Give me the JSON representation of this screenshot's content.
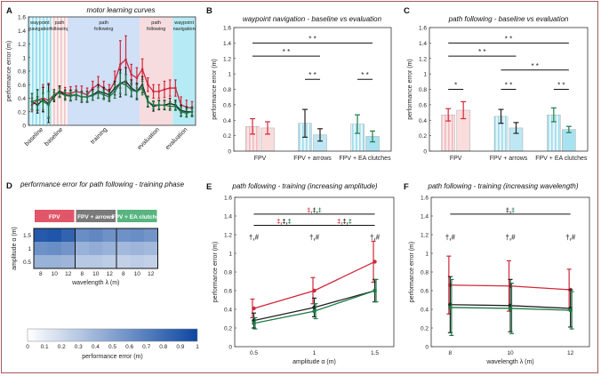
{
  "colors": {
    "fpv": "#d0283a",
    "arrows": "#222222",
    "ea": "#1e7a45",
    "fpv_fill": "#f9dcdc",
    "arrows_fill": "#bfe7f3",
    "ea_fill": "#a8e2f0",
    "fpv_label_bg": "#e2566a",
    "arrows_label_bg": "#7a7a7a",
    "ea_label_bg": "#58b580",
    "phase_nav": "#b6ebf5",
    "phase_follow": "#f6dcde",
    "phase_training": "#cfe0f7",
    "frame": "#a05a5a"
  },
  "panels": {
    "A": {
      "letter": "A",
      "title": "motor learning curves"
    },
    "B": {
      "letter": "B",
      "title": "waypoint navigation - baseline vs evaluation"
    },
    "C": {
      "letter": "C",
      "title": "path following - baseline vs evaluation"
    },
    "D": {
      "letter": "D",
      "title": "performance error for path following - training phase"
    },
    "E": {
      "letter": "E",
      "title": "path following - training (increasing amplitude)"
    },
    "F": {
      "letter": "F",
      "title": "path following - training (increasing wavelength)"
    }
  },
  "chart_data": [
    {
      "id": "A",
      "type": "line",
      "title": "motor learning curves",
      "ylabel": "performance error (m)",
      "ylim": [
        0,
        1.6
      ],
      "yticks": [
        "0",
        "0.2",
        "0.4",
        "0.6",
        "0.8",
        "1",
        "1.2",
        "1.4",
        "1.6"
      ],
      "phases": [
        {
          "lines": [
            "waypoint",
            "navigation"
          ],
          "xlabel": "baseline",
          "kind": "nav"
        },
        {
          "lines": [
            "path",
            "following"
          ],
          "xlabel": "baseline",
          "kind": "follow"
        },
        {
          "lines": [
            "path",
            "following"
          ],
          "xlabel": "training",
          "kind": "training"
        },
        {
          "lines": [
            "path",
            "following"
          ],
          "xlabel": "evaluation",
          "kind": "follow"
        },
        {
          "lines": [
            "waypoint",
            "navigation"
          ],
          "xlabel": "evaluation",
          "kind": "nav"
        }
      ],
      "series": [
        {
          "name": "FPV",
          "color_key": "fpv",
          "values": [
            0.3,
            0.37,
            0.4,
            0.37,
            0.45,
            0.5,
            0.48,
            0.47,
            0.5,
            0.48,
            0.45,
            0.55,
            0.6,
            0.55,
            0.5,
            0.65,
            0.9,
            0.97,
            0.75,
            0.7,
            0.83,
            0.6,
            0.5,
            0.5,
            0.53,
            0.55,
            0.55,
            0.3,
            0.27,
            0.25
          ],
          "errors": [
            0.1,
            0.15,
            0.2,
            0.25,
            0.08,
            0.08,
            0.08,
            0.1,
            0.08,
            0.1,
            0.1,
            0.1,
            0.12,
            0.1,
            0.1,
            0.15,
            0.35,
            0.35,
            0.15,
            0.15,
            0.15,
            0.1,
            0.1,
            0.1,
            0.12,
            0.12,
            0.12,
            0.12,
            0.1,
            0.1
          ]
        },
        {
          "name": "FPV + arrows",
          "color_key": "arrows",
          "values": [
            0.35,
            0.3,
            0.38,
            0.32,
            0.42,
            0.5,
            0.45,
            0.44,
            0.45,
            0.42,
            0.42,
            0.45,
            0.5,
            0.48,
            0.45,
            0.55,
            0.62,
            0.65,
            0.55,
            0.5,
            0.6,
            0.35,
            0.28,
            0.3,
            0.3,
            0.32,
            0.3,
            0.22,
            0.2,
            0.2
          ],
          "errors": [
            0.12,
            0.12,
            0.18,
            0.28,
            0.07,
            0.08,
            0.07,
            0.08,
            0.07,
            0.08,
            0.08,
            0.08,
            0.1,
            0.08,
            0.08,
            0.1,
            0.2,
            0.2,
            0.12,
            0.12,
            0.12,
            0.08,
            0.07,
            0.07,
            0.07,
            0.08,
            0.07,
            0.08,
            0.07,
            0.07
          ]
        },
        {
          "name": "FPV + EA clutches",
          "color_key": "ea",
          "values": [
            0.35,
            0.38,
            0.35,
            0.3,
            0.45,
            0.48,
            0.44,
            0.43,
            0.45,
            0.42,
            0.42,
            0.44,
            0.48,
            0.45,
            0.42,
            0.5,
            0.62,
            0.6,
            0.52,
            0.5,
            0.55,
            0.35,
            0.3,
            0.3,
            0.3,
            0.28,
            0.28,
            0.2,
            0.18,
            0.2
          ],
          "errors": [
            0.12,
            0.15,
            0.12,
            0.2,
            0.07,
            0.07,
            0.07,
            0.07,
            0.07,
            0.07,
            0.07,
            0.07,
            0.08,
            0.07,
            0.07,
            0.1,
            0.15,
            0.15,
            0.1,
            0.1,
            0.1,
            0.07,
            0.06,
            0.06,
            0.06,
            0.06,
            0.06,
            0.07,
            0.06,
            0.06
          ]
        }
      ],
      "phase_bounds": [
        0,
        4,
        7,
        20,
        26,
        30
      ]
    },
    {
      "id": "B",
      "type": "bar",
      "title": "waypoint navigation - baseline vs evaluation",
      "ylabel": "performance error (m)",
      "ylim": [
        0,
        1.6
      ],
      "yticks": [
        "0",
        "0.2",
        "0.4",
        "0.6",
        "0.8",
        "1",
        "1.2",
        "1.4",
        "1.6"
      ],
      "categories": [
        "FPV",
        "FPV + arrows",
        "FPV + EA clutches"
      ],
      "groups": [
        {
          "baseline": 0.32,
          "b_err": 0.1,
          "evaluation": 0.3,
          "e_err": 0.08,
          "color_key": "fpv"
        },
        {
          "baseline": 0.36,
          "b_err": 0.18,
          "evaluation": 0.21,
          "e_err": 0.08,
          "color_key": "arrows"
        },
        {
          "baseline": 0.35,
          "b_err": 0.12,
          "evaluation": 0.19,
          "e_err": 0.07,
          "color_key": "ea"
        }
      ],
      "significance": [
        {
          "from": 0,
          "to": 2,
          "level": 1.4,
          "label": "* *"
        },
        {
          "from": 0,
          "to": 1,
          "level": 1.23,
          "label": "* *"
        },
        {
          "from": 1.0,
          "to": 1.35,
          "level": 0.93,
          "label": "* *",
          "within": 1
        },
        {
          "from": 2.0,
          "to": 2.35,
          "level": 0.93,
          "label": "* *",
          "within": 2
        }
      ]
    },
    {
      "id": "C",
      "type": "bar",
      "title": "path following - baseline vs evaluation",
      "ylabel": "performance error (m)",
      "ylim": [
        0,
        1.6
      ],
      "yticks": [
        "0",
        "0.2",
        "0.4",
        "0.6",
        "0.8",
        "1",
        "1.2",
        "1.4",
        "1.6"
      ],
      "categories": [
        "FPV",
        "FPV + arrows",
        "FPV + EA clutches"
      ],
      "groups": [
        {
          "baseline": 0.47,
          "b_err": 0.08,
          "evaluation": 0.53,
          "e_err": 0.11,
          "color_key": "fpv"
        },
        {
          "baseline": 0.45,
          "b_err": 0.09,
          "evaluation": 0.3,
          "e_err": 0.07,
          "color_key": "arrows"
        },
        {
          "baseline": 0.47,
          "b_err": 0.09,
          "evaluation": 0.28,
          "e_err": 0.04,
          "color_key": "ea"
        }
      ],
      "significance": [
        {
          "from": 0,
          "to": 2,
          "level": 1.4,
          "label": "* *"
        },
        {
          "from": 0,
          "to": 1,
          "level": 1.23,
          "label": "* *"
        },
        {
          "from": 1,
          "to": 2,
          "level": 1.05,
          "label": "* *"
        },
        {
          "from": 0.0,
          "to": 0.35,
          "level": 0.8,
          "label": "*",
          "within": 0
        },
        {
          "from": 1.0,
          "to": 1.35,
          "level": 0.8,
          "label": "* *",
          "within": 1
        },
        {
          "from": 2.0,
          "to": 2.35,
          "level": 0.8,
          "label": "* *",
          "within": 2
        }
      ]
    },
    {
      "id": "D",
      "type": "heatmap",
      "title": "performance error for path following - training phase",
      "groups": [
        "FPV",
        "FPV + arrows",
        "FPV + EA clutches"
      ],
      "group_color_keys": [
        "fpv_label_bg",
        "arrows_label_bg",
        "ea_label_bg"
      ],
      "xlabel": "wavelength λ (m)",
      "ylabel": "amplitude α (m)",
      "xticks": [
        "8",
        "10",
        "12"
      ],
      "yticks": [
        "1.5",
        "1",
        "0.5"
      ],
      "matrices": [
        [
          [
            0.9,
            0.92,
            0.85
          ],
          [
            0.6,
            0.62,
            0.58
          ],
          [
            0.42,
            0.42,
            0.4
          ]
        ],
        [
          [
            0.62,
            0.65,
            0.6
          ],
          [
            0.42,
            0.45,
            0.42
          ],
          [
            0.3,
            0.3,
            0.27
          ]
        ],
        [
          [
            0.6,
            0.62,
            0.58
          ],
          [
            0.38,
            0.4,
            0.38
          ],
          [
            0.25,
            0.27,
            0.25
          ]
        ]
      ],
      "colorbar": {
        "label": "performance error (m)",
        "ticks": [
          "0",
          "0.1",
          "0.2",
          "0.3",
          "0.4",
          "0.5",
          "0.6",
          "0.7",
          "0.8",
          "0.9",
          "1"
        ],
        "range": [
          0,
          1
        ]
      }
    },
    {
      "id": "E",
      "type": "line",
      "title": "path following - training (increasing amplitude)",
      "xlabel": "amplitude α (m)",
      "ylabel": "performance error (m)",
      "x": [
        0.5,
        1,
        1.5
      ],
      "xticks": [
        "0.5",
        "1",
        "1.5"
      ],
      "ylim": [
        0,
        1.6
      ],
      "yticks": [
        "0",
        "0.2",
        "0.4",
        "0.6",
        "0.8",
        "1",
        "1.2",
        "1.4",
        "1.6"
      ],
      "series": [
        {
          "name": "FPV",
          "color_key": "fpv",
          "values": [
            0.41,
            0.6,
            0.91
          ],
          "errors": [
            0.1,
            0.14,
            0.22
          ]
        },
        {
          "name": "FPV + arrows",
          "color_key": "arrows",
          "values": [
            0.28,
            0.42,
            0.6
          ],
          "errors": [
            0.08,
            0.1,
            0.12
          ]
        },
        {
          "name": "FPV + EA clutches",
          "color_key": "ea",
          "values": [
            0.25,
            0.38,
            0.6
          ],
          "errors": [
            0.06,
            0.08,
            0.12
          ]
        }
      ],
      "markers": [
        "†,#",
        "†,#",
        "†,#"
      ],
      "significance": [
        {
          "from": 0.5,
          "to": 1.5,
          "level": 1.42,
          "label": "‡,‡,‡",
          "colors": [
            "fpv",
            "arrows",
            "ea"
          ]
        },
        {
          "from": 0.5,
          "to": 1,
          "level": 1.3,
          "label": "‡,‡,‡",
          "colors": [
            "fpv",
            "arrows",
            "ea"
          ]
        },
        {
          "from": 1,
          "to": 1.5,
          "level": 1.3,
          "label": "‡,‡,‡",
          "colors": [
            "fpv",
            "arrows",
            "ea"
          ]
        }
      ]
    },
    {
      "id": "F",
      "type": "line",
      "title": "path following - training (increasing wavelength)",
      "xlabel": "wavelength λ (m)",
      "ylabel": "performance error (m)",
      "x": [
        8,
        10,
        12
      ],
      "xticks": [
        "8",
        "10",
        "12"
      ],
      "ylim": [
        0,
        1.6
      ],
      "yticks": [
        "0",
        "0.2",
        "0.4",
        "0.6",
        "0.8",
        "1",
        "1.2",
        "1.4",
        "1.6"
      ],
      "series": [
        {
          "name": "FPV",
          "color_key": "fpv",
          "values": [
            0.66,
            0.65,
            0.61
          ],
          "errors": [
            0.31,
            0.27,
            0.22
          ]
        },
        {
          "name": "FPV + arrows",
          "color_key": "arrows",
          "values": [
            0.45,
            0.44,
            0.41
          ],
          "errors": [
            0.3,
            0.28,
            0.2
          ]
        },
        {
          "name": "FPV + EA clutches",
          "color_key": "ea",
          "values": [
            0.42,
            0.41,
            0.39
          ],
          "errors": [
            0.3,
            0.27,
            0.2
          ]
        }
      ],
      "markers": [
        "†,#",
        "†,#",
        "†,#"
      ],
      "significance": [
        {
          "from": 8,
          "to": 12,
          "level": 1.42,
          "label": "‡,‡",
          "colors": [
            "arrows",
            "ea"
          ]
        }
      ]
    }
  ]
}
